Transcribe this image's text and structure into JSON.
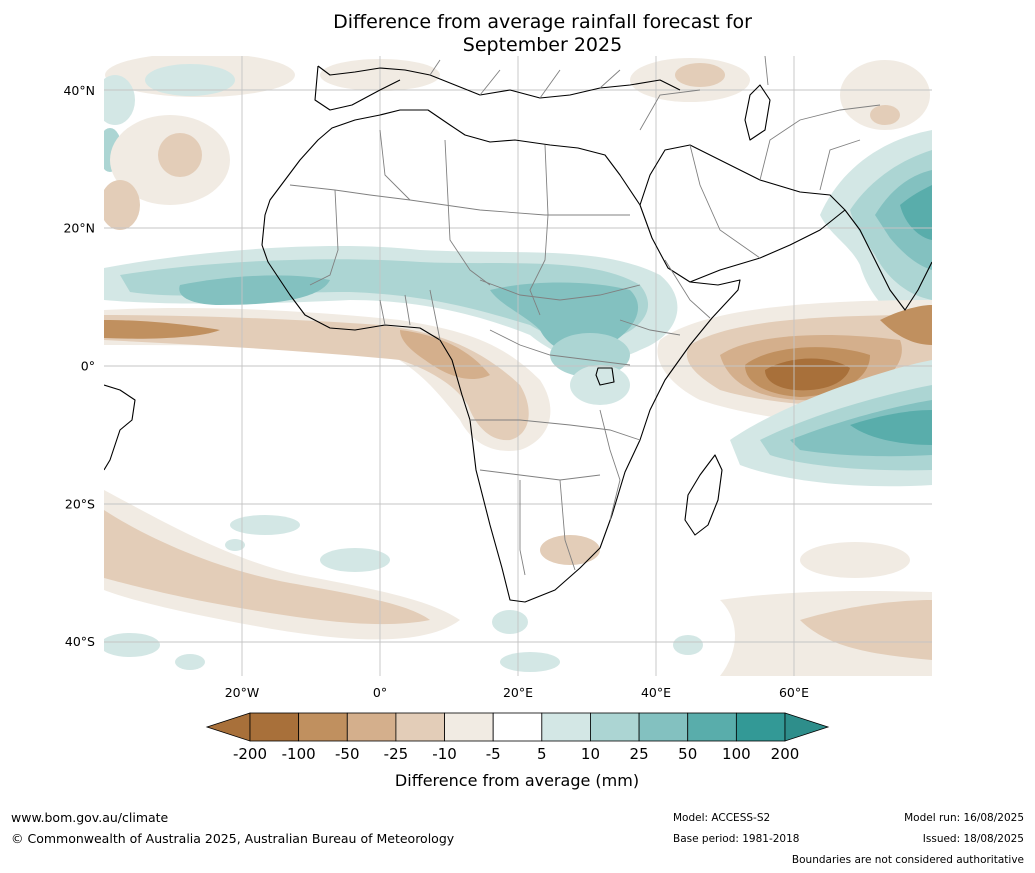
{
  "title": {
    "line1": "Difference from average rainfall forecast for",
    "line2": "September 2025"
  },
  "map": {
    "region": "Africa",
    "projection": "plate-carree",
    "lon_range": [
      -40,
      80
    ],
    "lat_range": [
      -45,
      45
    ],
    "lat_ticks": [
      {
        "value": 40,
        "label": "40°N"
      },
      {
        "value": 20,
        "label": "20°N"
      },
      {
        "value": 0,
        "label": "0°"
      },
      {
        "value": -20,
        "label": "20°S"
      },
      {
        "value": -40,
        "label": "40°S"
      }
    ],
    "lon_ticks": [
      {
        "value": -20,
        "label": "20°W"
      },
      {
        "value": 0,
        "label": "0°"
      },
      {
        "value": 20,
        "label": "20°E"
      },
      {
        "value": 40,
        "label": "40°E"
      },
      {
        "value": 60,
        "label": "60°E"
      }
    ],
    "grid": true
  },
  "colorbar": {
    "title": "Difference from average (mm)",
    "ticks": [
      "-200",
      "-100",
      "-50",
      "-25",
      "-10",
      "-5",
      "5",
      "10",
      "25",
      "50",
      "100",
      "200"
    ],
    "colors": [
      "#a8703a",
      "#c0905f",
      "#d4af8c",
      "#e3cdb8",
      "#f1ebe3",
      "#ffffff",
      "#d3e7e5",
      "#acd5d3",
      "#83c1c0",
      "#59adab",
      "#339996"
    ],
    "extend_low_color": "#a8703a",
    "extend_high_color": "#2e8e8b"
  },
  "footer": {
    "website": "www.bom.gov.au/climate",
    "copyright": "© Commonwealth of Australia 2025, Australian Bureau of Meteorology",
    "model": "Model: ACCESS-S2",
    "base_period": "Base period: 1981-2018",
    "model_run": "Model run: 16/08/2025",
    "issued": "Issued: 18/08/2025",
    "disclaimer": "Boundaries are not considered authoritative"
  }
}
